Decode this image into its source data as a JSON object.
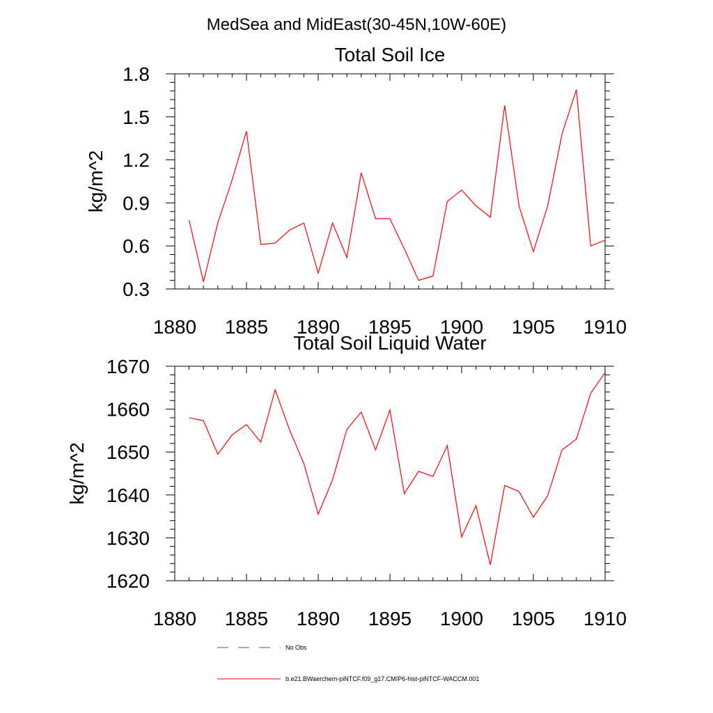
{
  "figure_title": "MedSea and MidEast(30-45N,10W-60E)",
  "chart_data": [
    {
      "type": "line",
      "title": "Total Soil Ice",
      "xlabel": "",
      "ylabel": "kg/m^2",
      "xlim": [
        1880,
        1910
      ],
      "ylim": [
        0.3,
        1.8
      ],
      "x_ticks": [
        1880,
        1885,
        1890,
        1895,
        1900,
        1905,
        1910
      ],
      "y_ticks": [
        0.3,
        0.6,
        0.9,
        1.2,
        1.5,
        1.8
      ],
      "y_tick_labels": [
        "0.3",
        "0.6",
        "0.9",
        "1.2",
        "1.5",
        "1.8"
      ],
      "series": [
        {
          "name": "b.e21.BWaerchem-piNTCF.f09_g17.CMIP6-hist-piNTCF-WACCM.001",
          "color": "#ff0000",
          "x": [
            1881,
            1882,
            1883,
            1884,
            1885,
            1886,
            1887,
            1888,
            1889,
            1890,
            1891,
            1892,
            1893,
            1894,
            1895,
            1896,
            1897,
            1898,
            1899,
            1900,
            1901,
            1902,
            1903,
            1904,
            1905,
            1906,
            1907,
            1908,
            1909,
            1910
          ],
          "values": [
            0.78,
            0.35,
            0.76,
            1.06,
            1.4,
            0.61,
            0.62,
            0.71,
            0.76,
            0.41,
            0.76,
            0.52,
            1.11,
            0.79,
            0.79,
            0.58,
            0.36,
            0.39,
            0.91,
            0.99,
            0.88,
            0.8,
            1.58,
            0.88,
            0.56,
            0.88,
            1.38,
            1.69,
            0.6,
            0.64
          ]
        }
      ]
    },
    {
      "type": "line",
      "title": "Total Soil Liquid Water",
      "xlabel": "",
      "ylabel": "kg/m^2",
      "xlim": [
        1880,
        1910
      ],
      "ylim": [
        1620,
        1670
      ],
      "x_ticks": [
        1880,
        1885,
        1890,
        1895,
        1900,
        1905,
        1910
      ],
      "y_ticks": [
        1620,
        1630,
        1640,
        1650,
        1660,
        1670
      ],
      "y_tick_labels": [
        "1620",
        "1630",
        "1640",
        "1650",
        "1660",
        "1670"
      ],
      "series": [
        {
          "name": "b.e21.BWaerchem-piNTCF.f09_g17.CMIP6-hist-piNTCF-WACCM.001",
          "color": "#ff0000",
          "x": [
            1881,
            1882,
            1883,
            1884,
            1885,
            1886,
            1887,
            1888,
            1889,
            1890,
            1891,
            1892,
            1893,
            1894,
            1895,
            1896,
            1897,
            1898,
            1899,
            1900,
            1901,
            1902,
            1903,
            1904,
            1905,
            1906,
            1907,
            1908,
            1909,
            1910
          ],
          "values": [
            1658.0,
            1657.3,
            1649.5,
            1654.0,
            1656.4,
            1652.3,
            1664.5,
            1655.2,
            1647.3,
            1635.5,
            1643.5,
            1655.3,
            1659.3,
            1650.5,
            1659.8,
            1640.3,
            1645.5,
            1644.3,
            1651.5,
            1630.2,
            1637.5,
            1623.7,
            1642.2,
            1640.8,
            1634.8,
            1639.8,
            1650.5,
            1653.0,
            1663.7,
            1668.5
          ]
        }
      ]
    }
  ],
  "legend": {
    "entries": [
      {
        "label": "No Obs",
        "style": "dashed",
        "color": "#4a4ab0"
      },
      {
        "label": "b.e21.BWaerchem-piNTCF.f09_g17.CMIP6-hist-piNTCF-WACCM.001",
        "style": "solid",
        "color": "#ff0000"
      }
    ]
  }
}
